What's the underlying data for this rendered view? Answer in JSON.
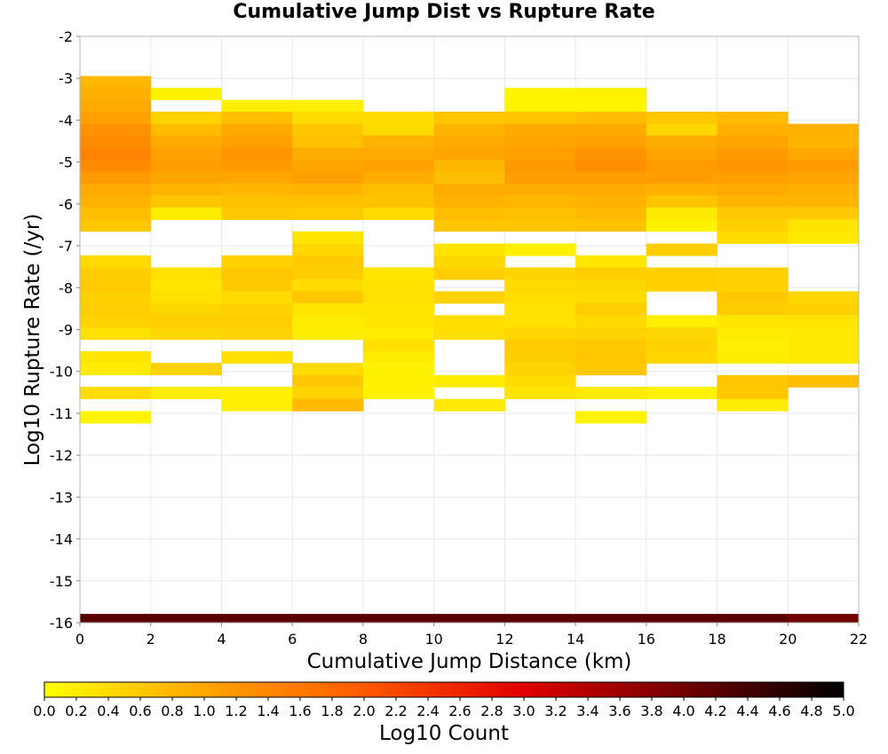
{
  "chart_data": {
    "type": "heatmap",
    "title": "Cumulative Jump Dist vs Rupture Rate",
    "xlabel": "Cumulative Jump Distance (km)",
    "ylabel": "Log10 Rupture Rate (/yr)",
    "colorbar_label": "Log10 Count",
    "xlim": [
      0,
      22
    ],
    "ylim": [
      -16,
      -2
    ],
    "x_ticks": [
      0,
      2,
      4,
      6,
      8,
      10,
      12,
      14,
      16,
      18,
      20,
      22
    ],
    "y_ticks": [
      -2,
      -3,
      -4,
      -5,
      -6,
      -7,
      -8,
      -9,
      -10,
      -11,
      -12,
      -13,
      -14,
      -15,
      -16
    ],
    "colorbar_range": [
      0.0,
      5.0
    ],
    "colorbar_ticks": [
      "0.0",
      "0.2",
      "0.4",
      "0.6",
      "0.8",
      "1.0",
      "1.2",
      "1.4",
      "1.6",
      "1.8",
      "2.0",
      "2.2",
      "2.4",
      "2.6",
      "2.8",
      "3.0",
      "3.2",
      "3.4",
      "3.6",
      "3.8",
      "4.0",
      "4.2",
      "4.4",
      "4.6",
      "4.8",
      "5.0"
    ],
    "colormap": [
      "#ffff00",
      "#ffa500",
      "#ff5a00",
      "#e00000",
      "#700000",
      "#000000"
    ],
    "x_bin_width": 2,
    "y_bin_height": 0.2857,
    "x_bins": [
      1,
      3,
      5,
      7,
      9,
      11,
      13,
      15,
      17,
      19,
      21
    ],
    "cells": [
      [
        [
          -3.09,
          0.78
        ],
        [
          -3.37,
          0.88
        ],
        [
          -3.66,
          0.95
        ],
        [
          -3.94,
          1.05
        ],
        [
          -4.23,
          1.25
        ],
        [
          -4.51,
          1.35
        ],
        [
          -4.8,
          1.45
        ],
        [
          -5.09,
          1.35
        ],
        [
          -5.37,
          1.15
        ],
        [
          -5.66,
          0.95
        ],
        [
          -5.94,
          0.85
        ],
        [
          -6.23,
          0.72
        ],
        [
          -6.51,
          0.62
        ],
        [
          -7.37,
          0.42
        ],
        [
          -7.66,
          0.55
        ],
        [
          -7.94,
          0.58
        ],
        [
          -8.23,
          0.52
        ],
        [
          -8.51,
          0.55
        ],
        [
          -8.8,
          0.5
        ],
        [
          -9.09,
          0.35
        ],
        [
          -9.66,
          0.28
        ],
        [
          -9.94,
          0.22
        ],
        [
          -10.51,
          0.4
        ],
        [
          -11.09,
          0.12
        ]
      ],
      [
        [
          -3.37,
          0.15
        ],
        [
          -3.94,
          0.5
        ],
        [
          -4.23,
          0.75
        ],
        [
          -4.51,
          0.95
        ],
        [
          -4.8,
          1.05
        ],
        [
          -5.09,
          1.1
        ],
        [
          -5.37,
          1.0
        ],
        [
          -5.66,
          0.82
        ],
        [
          -5.94,
          0.62
        ],
        [
          -6.23,
          0.2
        ],
        [
          -7.66,
          0.35
        ],
        [
          -7.94,
          0.28
        ],
        [
          -8.23,
          0.32
        ],
        [
          -8.51,
          0.45
        ],
        [
          -8.8,
          0.55
        ],
        [
          -9.09,
          0.45
        ],
        [
          -9.94,
          0.5
        ],
        [
          -10.51,
          0.2
        ]
      ],
      [
        [
          -3.66,
          0.18
        ],
        [
          -3.94,
          0.72
        ],
        [
          -4.23,
          0.95
        ],
        [
          -4.51,
          1.08
        ],
        [
          -4.8,
          1.2
        ],
        [
          -5.09,
          1.15
        ],
        [
          -5.37,
          1.0
        ],
        [
          -5.66,
          0.8
        ],
        [
          -5.94,
          0.7
        ],
        [
          -6.23,
          0.6
        ],
        [
          -7.37,
          0.5
        ],
        [
          -7.66,
          0.62
        ],
        [
          -7.94,
          0.58
        ],
        [
          -8.23,
          0.42
        ],
        [
          -8.51,
          0.5
        ],
        [
          -8.8,
          0.55
        ],
        [
          -9.09,
          0.5
        ],
        [
          -9.66,
          0.35
        ],
        [
          -10.51,
          0.18
        ],
        [
          -10.8,
          0.18
        ]
      ],
      [
        [
          -3.66,
          0.18
        ],
        [
          -3.94,
          0.4
        ],
        [
          -4.23,
          0.62
        ],
        [
          -4.51,
          0.7
        ],
        [
          -4.8,
          0.92
        ],
        [
          -5.09,
          1.0
        ],
        [
          -5.37,
          1.08
        ],
        [
          -5.66,
          0.82
        ],
        [
          -5.94,
          0.7
        ],
        [
          -6.23,
          0.58
        ],
        [
          -6.8,
          0.3
        ],
        [
          -7.09,
          0.45
        ],
        [
          -7.37,
          0.58
        ],
        [
          -7.66,
          0.55
        ],
        [
          -7.94,
          0.4
        ],
        [
          -8.23,
          0.62
        ],
        [
          -8.51,
          0.3
        ],
        [
          -8.8,
          0.22
        ],
        [
          -9.09,
          0.2
        ],
        [
          -9.94,
          0.4
        ],
        [
          -10.23,
          0.62
        ],
        [
          -10.51,
          0.5
        ],
        [
          -10.8,
          0.78
        ]
      ],
      [
        [
          -3.94,
          0.4
        ],
        [
          -4.23,
          0.4
        ],
        [
          -4.51,
          0.85
        ],
        [
          -4.8,
          0.95
        ],
        [
          -5.09,
          1.05
        ],
        [
          -5.37,
          0.92
        ],
        [
          -5.66,
          0.72
        ],
        [
          -5.94,
          0.68
        ],
        [
          -6.23,
          0.4
        ],
        [
          -7.66,
          0.28
        ],
        [
          -7.94,
          0.32
        ],
        [
          -8.23,
          0.35
        ],
        [
          -8.51,
          0.3
        ],
        [
          -8.8,
          0.28
        ],
        [
          -9.09,
          0.22
        ],
        [
          -9.37,
          0.35
        ],
        [
          -9.66,
          0.2
        ],
        [
          -9.94,
          0.15
        ],
        [
          -10.23,
          0.15
        ],
        [
          -10.51,
          0.15
        ]
      ],
      [
        [
          -3.94,
          0.62
        ],
        [
          -4.23,
          0.82
        ],
        [
          -4.51,
          0.95
        ],
        [
          -4.8,
          1.02
        ],
        [
          -5.09,
          0.8
        ],
        [
          -5.37,
          0.72
        ],
        [
          -5.66,
          0.92
        ],
        [
          -5.94,
          0.85
        ],
        [
          -6.23,
          0.75
        ],
        [
          -6.51,
          0.65
        ],
        [
          -7.09,
          0.3
        ],
        [
          -7.37,
          0.45
        ],
        [
          -7.66,
          0.55
        ],
        [
          -8.23,
          0.5
        ],
        [
          -8.8,
          0.38
        ],
        [
          -9.09,
          0.38
        ],
        [
          -10.23,
          0.2
        ],
        [
          -10.8,
          0.25
        ]
      ],
      [
        [
          -3.37,
          0.12
        ],
        [
          -3.66,
          0.12
        ],
        [
          -3.94,
          0.65
        ],
        [
          -4.23,
          0.95
        ],
        [
          -4.51,
          1.0
        ],
        [
          -4.8,
          1.08
        ],
        [
          -5.09,
          1.15
        ],
        [
          -5.37,
          1.1
        ],
        [
          -5.66,
          0.92
        ],
        [
          -5.94,
          0.8
        ],
        [
          -6.23,
          0.7
        ],
        [
          -6.51,
          0.65
        ],
        [
          -7.09,
          0.18
        ],
        [
          -7.66,
          0.48
        ],
        [
          -7.94,
          0.42
        ],
        [
          -8.23,
          0.38
        ],
        [
          -8.51,
          0.35
        ],
        [
          -8.8,
          0.32
        ],
        [
          -9.09,
          0.45
        ],
        [
          -9.37,
          0.58
        ],
        [
          -9.66,
          0.55
        ],
        [
          -9.94,
          0.48
        ],
        [
          -10.23,
          0.4
        ],
        [
          -10.51,
          0.3
        ]
      ],
      [
        [
          -3.37,
          0.15
        ],
        [
          -3.66,
          0.12
        ],
        [
          -3.94,
          0.75
        ],
        [
          -4.23,
          0.95
        ],
        [
          -4.51,
          1.05
        ],
        [
          -4.8,
          1.25
        ],
        [
          -5.09,
          1.3
        ],
        [
          -5.37,
          1.1
        ],
        [
          -5.66,
          0.95
        ],
        [
          -5.94,
          0.85
        ],
        [
          -6.23,
          0.78
        ],
        [
          -6.51,
          0.7
        ],
        [
          -7.37,
          0.28
        ],
        [
          -7.66,
          0.55
        ],
        [
          -7.94,
          0.45
        ],
        [
          -8.23,
          0.38
        ],
        [
          -8.51,
          0.55
        ],
        [
          -8.8,
          0.42
        ],
        [
          -9.09,
          0.5
        ],
        [
          -9.37,
          0.6
        ],
        [
          -9.66,
          0.62
        ],
        [
          -9.94,
          0.62
        ],
        [
          -10.51,
          0.22
        ],
        [
          -11.09,
          0.15
        ]
      ],
      [
        [
          -3.94,
          0.62
        ],
        [
          -4.23,
          0.45
        ],
        [
          -4.51,
          0.92
        ],
        [
          -4.8,
          1.02
        ],
        [
          -5.09,
          1.12
        ],
        [
          -5.37,
          1.1
        ],
        [
          -5.66,
          0.88
        ],
        [
          -5.94,
          0.65
        ],
        [
          -6.23,
          0.25
        ],
        [
          -6.51,
          0.15
        ],
        [
          -7.09,
          0.55
        ],
        [
          -7.66,
          0.52
        ],
        [
          -7.94,
          0.52
        ],
        [
          -8.8,
          0.18
        ],
        [
          -9.09,
          0.45
        ],
        [
          -9.37,
          0.5
        ],
        [
          -9.66,
          0.45
        ],
        [
          -10.51,
          0.15
        ]
      ],
      [
        [
          -3.94,
          0.75
        ],
        [
          -4.23,
          0.88
        ],
        [
          -4.51,
          1.0
        ],
        [
          -4.8,
          1.15
        ],
        [
          -5.09,
          1.2
        ],
        [
          -5.37,
          1.08
        ],
        [
          -5.66,
          0.95
        ],
        [
          -5.94,
          0.82
        ],
        [
          -6.23,
          0.6
        ],
        [
          -6.51,
          0.52
        ],
        [
          -6.8,
          0.4
        ],
        [
          -7.66,
          0.5
        ],
        [
          -7.94,
          0.5
        ],
        [
          -8.23,
          0.62
        ],
        [
          -8.51,
          0.55
        ],
        [
          -8.8,
          0.28
        ],
        [
          -9.09,
          0.22
        ],
        [
          -9.37,
          0.18
        ],
        [
          -9.66,
          0.2
        ],
        [
          -10.23,
          0.62
        ],
        [
          -10.51,
          0.62
        ],
        [
          -10.8,
          0.2
        ]
      ],
      [
        [
          -4.23,
          0.85
        ],
        [
          -4.51,
          0.82
        ],
        [
          -4.8,
          0.98
        ],
        [
          -5.09,
          1.12
        ],
        [
          -5.37,
          1.02
        ],
        [
          -5.66,
          0.88
        ],
        [
          -5.94,
          0.82
        ],
        [
          -6.23,
          0.6
        ],
        [
          -6.51,
          0.3
        ],
        [
          -6.8,
          0.25
        ],
        [
          -8.23,
          0.45
        ],
        [
          -8.51,
          0.52
        ],
        [
          -8.8,
          0.3
        ],
        [
          -9.09,
          0.25
        ],
        [
          -9.37,
          0.25
        ],
        [
          -9.66,
          0.25
        ],
        [
          -10.23,
          0.72
        ]
      ]
    ],
    "bottom_row": {
      "y": -15.94,
      "values": [
        4.2,
        4.2,
        4.2,
        4.2,
        4.2,
        4.2,
        4.2,
        4.2,
        4.2,
        4.2,
        4.0
      ]
    }
  }
}
